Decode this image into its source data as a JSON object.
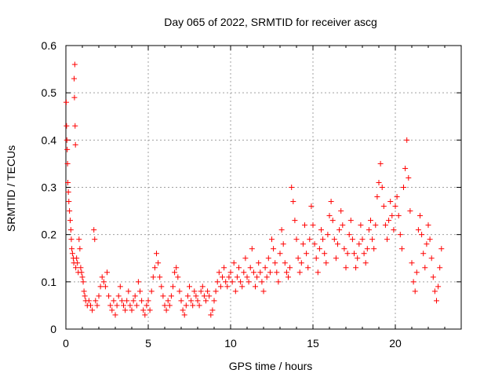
{
  "chart_data": {
    "type": "scatter",
    "title": "Day 065 of 2022, SRMTID for receiver ascg",
    "xlabel": "GPS time / hours",
    "ylabel": "SRMTID / TECUs",
    "xlim": [
      0,
      24
    ],
    "ylim": [
      0,
      0.6
    ],
    "xticks": [
      0,
      5,
      10,
      15,
      20
    ],
    "yticks": [
      0,
      0.1,
      0.2,
      0.3,
      0.4,
      0.5,
      0.6
    ],
    "xtick_labels": [
      "0",
      "5",
      "10",
      "15",
      "20"
    ],
    "ytick_labels": [
      "0",
      "0.1",
      "0.2",
      "0.3",
      "0.4",
      "0.5",
      "0.6"
    ],
    "grid": true,
    "marker": "+",
    "color": "#ff0000",
    "series": [
      {
        "name": "SRMTID",
        "points": [
          [
            0.02,
            0.48
          ],
          [
            0.04,
            0.43
          ],
          [
            0.06,
            0.4
          ],
          [
            0.08,
            0.38
          ],
          [
            0.1,
            0.35
          ],
          [
            0.12,
            0.31
          ],
          [
            0.15,
            0.29
          ],
          [
            0.18,
            0.27
          ],
          [
            0.22,
            0.25
          ],
          [
            0.26,
            0.23
          ],
          [
            0.3,
            0.21
          ],
          [
            0.33,
            0.19
          ],
          [
            0.36,
            0.17
          ],
          [
            0.4,
            0.16
          ],
          [
            0.45,
            0.15
          ],
          [
            0.48,
            0.14
          ],
          [
            0.5,
            0.53
          ],
          [
            0.52,
            0.49
          ],
          [
            0.54,
            0.56
          ],
          [
            0.56,
            0.43
          ],
          [
            0.58,
            0.39
          ],
          [
            0.6,
            0.13
          ],
          [
            0.65,
            0.15
          ],
          [
            0.7,
            0.14
          ],
          [
            0.75,
            0.12
          ],
          [
            0.8,
            0.19
          ],
          [
            0.85,
            0.17
          ],
          [
            0.9,
            0.13
          ],
          [
            0.95,
            0.12
          ],
          [
            1.0,
            0.11
          ],
          [
            1.05,
            0.1
          ],
          [
            1.1,
            0.08
          ],
          [
            1.15,
            0.07
          ],
          [
            1.2,
            0.06
          ],
          [
            1.3,
            0.05
          ],
          [
            1.4,
            0.06
          ],
          [
            1.5,
            0.05
          ],
          [
            1.6,
            0.04
          ],
          [
            1.7,
            0.21
          ],
          [
            1.75,
            0.19
          ],
          [
            1.8,
            0.06
          ],
          [
            1.9,
            0.05
          ],
          [
            2.0,
            0.07
          ],
          [
            2.1,
            0.09
          ],
          [
            2.2,
            0.11
          ],
          [
            2.3,
            0.1
          ],
          [
            2.4,
            0.09
          ],
          [
            2.5,
            0.12
          ],
          [
            2.6,
            0.07
          ],
          [
            2.7,
            0.05
          ],
          [
            2.8,
            0.04
          ],
          [
            2.9,
            0.06
          ],
          [
            3.0,
            0.03
          ],
          [
            3.1,
            0.05
          ],
          [
            3.2,
            0.07
          ],
          [
            3.3,
            0.09
          ],
          [
            3.4,
            0.06
          ],
          [
            3.5,
            0.05
          ],
          [
            3.6,
            0.04
          ],
          [
            3.7,
            0.06
          ],
          [
            3.8,
            0.08
          ],
          [
            3.9,
            0.05
          ],
          [
            4.0,
            0.04
          ],
          [
            4.1,
            0.06
          ],
          [
            4.2,
            0.07
          ],
          [
            4.3,
            0.05
          ],
          [
            4.4,
            0.1
          ],
          [
            4.5,
            0.08
          ],
          [
            4.6,
            0.06
          ],
          [
            4.7,
            0.04
          ],
          [
            4.8,
            0.03
          ],
          [
            4.9,
            0.05
          ],
          [
            5.0,
            0.06
          ],
          [
            5.1,
            0.04
          ],
          [
            5.2,
            0.08
          ],
          [
            5.3,
            0.11
          ],
          [
            5.4,
            0.13
          ],
          [
            5.5,
            0.16
          ],
          [
            5.6,
            0.14
          ],
          [
            5.7,
            0.11
          ],
          [
            5.8,
            0.09
          ],
          [
            5.9,
            0.07
          ],
          [
            6.0,
            0.05
          ],
          [
            6.1,
            0.04
          ],
          [
            6.2,
            0.06
          ],
          [
            6.3,
            0.05
          ],
          [
            6.4,
            0.07
          ],
          [
            6.5,
            0.09
          ],
          [
            6.6,
            0.12
          ],
          [
            6.7,
            0.13
          ],
          [
            6.8,
            0.11
          ],
          [
            6.9,
            0.08
          ],
          [
            7.0,
            0.06
          ],
          [
            7.1,
            0.04
          ],
          [
            7.2,
            0.03
          ],
          [
            7.3,
            0.05
          ],
          [
            7.4,
            0.07
          ],
          [
            7.5,
            0.09
          ],
          [
            7.6,
            0.06
          ],
          [
            7.7,
            0.05
          ],
          [
            7.8,
            0.08
          ],
          [
            7.9,
            0.07
          ],
          [
            8.0,
            0.06
          ],
          [
            8.1,
            0.05
          ],
          [
            8.2,
            0.08
          ],
          [
            8.3,
            0.09
          ],
          [
            8.4,
            0.07
          ],
          [
            8.5,
            0.06
          ],
          [
            8.6,
            0.08
          ],
          [
            8.7,
            0.07
          ],
          [
            8.8,
            0.03
          ],
          [
            8.9,
            0.04
          ],
          [
            9.0,
            0.06
          ],
          [
            9.1,
            0.08
          ],
          [
            9.2,
            0.1
          ],
          [
            9.3,
            0.12
          ],
          [
            9.4,
            0.09
          ],
          [
            9.5,
            0.11
          ],
          [
            9.6,
            0.13
          ],
          [
            9.7,
            0.1
          ],
          [
            9.8,
            0.09
          ],
          [
            9.9,
            0.11
          ],
          [
            10.0,
            0.12
          ],
          [
            10.1,
            0.1
          ],
          [
            10.2,
            0.14
          ],
          [
            10.3,
            0.08
          ],
          [
            10.4,
            0.11
          ],
          [
            10.5,
            0.13
          ],
          [
            10.6,
            0.1
          ],
          [
            10.7,
            0.09
          ],
          [
            10.8,
            0.12
          ],
          [
            10.9,
            0.15
          ],
          [
            11.0,
            0.11
          ],
          [
            11.1,
            0.1
          ],
          [
            11.2,
            0.13
          ],
          [
            11.3,
            0.17
          ],
          [
            11.4,
            0.12
          ],
          [
            11.5,
            0.09
          ],
          [
            11.6,
            0.11
          ],
          [
            11.7,
            0.14
          ],
          [
            11.8,
            0.12
          ],
          [
            11.9,
            0.1
          ],
          [
            12.0,
            0.08
          ],
          [
            12.1,
            0.13
          ],
          [
            12.2,
            0.11
          ],
          [
            12.3,
            0.15
          ],
          [
            12.4,
            0.12
          ],
          [
            12.5,
            0.19
          ],
          [
            12.6,
            0.17
          ],
          [
            12.7,
            0.14
          ],
          [
            12.8,
            0.12
          ],
          [
            12.9,
            0.1
          ],
          [
            13.0,
            0.16
          ],
          [
            13.1,
            0.21
          ],
          [
            13.2,
            0.18
          ],
          [
            13.3,
            0.14
          ],
          [
            13.4,
            0.12
          ],
          [
            13.5,
            0.11
          ],
          [
            13.6,
            0.13
          ],
          [
            13.7,
            0.3
          ],
          [
            13.8,
            0.27
          ],
          [
            13.9,
            0.23
          ],
          [
            14.0,
            0.19
          ],
          [
            14.1,
            0.15
          ],
          [
            14.2,
            0.12
          ],
          [
            14.3,
            0.14
          ],
          [
            14.4,
            0.18
          ],
          [
            14.5,
            0.22
          ],
          [
            14.6,
            0.16
          ],
          [
            14.7,
            0.13
          ],
          [
            14.8,
            0.19
          ],
          [
            14.9,
            0.26
          ],
          [
            15.0,
            0.22
          ],
          [
            15.1,
            0.18
          ],
          [
            15.2,
            0.15
          ],
          [
            15.3,
            0.12
          ],
          [
            15.4,
            0.17
          ],
          [
            15.5,
            0.21
          ],
          [
            15.6,
            0.19
          ],
          [
            15.7,
            0.16
          ],
          [
            15.8,
            0.14
          ],
          [
            15.9,
            0.2
          ],
          [
            16.0,
            0.24
          ],
          [
            16.1,
            0.27
          ],
          [
            16.2,
            0.23
          ],
          [
            16.3,
            0.19
          ],
          [
            16.4,
            0.15
          ],
          [
            16.5,
            0.18
          ],
          [
            16.6,
            0.21
          ],
          [
            16.7,
            0.25
          ],
          [
            16.8,
            0.22
          ],
          [
            16.9,
            0.17
          ],
          [
            17.0,
            0.13
          ],
          [
            17.1,
            0.16
          ],
          [
            17.2,
            0.2
          ],
          [
            17.3,
            0.23
          ],
          [
            17.4,
            0.19
          ],
          [
            17.5,
            0.16
          ],
          [
            17.6,
            0.13
          ],
          [
            17.7,
            0.15
          ],
          [
            17.8,
            0.18
          ],
          [
            17.9,
            0.22
          ],
          [
            18.0,
            0.19
          ],
          [
            18.1,
            0.16
          ],
          [
            18.2,
            0.14
          ],
          [
            18.3,
            0.17
          ],
          [
            18.4,
            0.21
          ],
          [
            18.5,
            0.23
          ],
          [
            18.6,
            0.19
          ],
          [
            18.7,
            0.17
          ],
          [
            18.8,
            0.22
          ],
          [
            18.9,
            0.28
          ],
          [
            19.0,
            0.31
          ],
          [
            19.1,
            0.35
          ],
          [
            19.2,
            0.3
          ],
          [
            19.3,
            0.26
          ],
          [
            19.4,
            0.22
          ],
          [
            19.5,
            0.19
          ],
          [
            19.6,
            0.23
          ],
          [
            19.7,
            0.27
          ],
          [
            19.8,
            0.24
          ],
          [
            19.9,
            0.21
          ],
          [
            20.0,
            0.26
          ],
          [
            20.1,
            0.28
          ],
          [
            20.2,
            0.24
          ],
          [
            20.3,
            0.2
          ],
          [
            20.4,
            0.17
          ],
          [
            20.5,
            0.3
          ],
          [
            20.6,
            0.34
          ],
          [
            20.7,
            0.4
          ],
          [
            20.8,
            0.32
          ],
          [
            20.9,
            0.25
          ],
          [
            21.0,
            0.14
          ],
          [
            21.1,
            0.1
          ],
          [
            21.2,
            0.08
          ],
          [
            21.3,
            0.12
          ],
          [
            21.4,
            0.21
          ],
          [
            21.5,
            0.24
          ],
          [
            21.6,
            0.2
          ],
          [
            21.7,
            0.16
          ],
          [
            21.8,
            0.13
          ],
          [
            21.9,
            0.18
          ],
          [
            22.0,
            0.22
          ],
          [
            22.1,
            0.19
          ],
          [
            22.2,
            0.15
          ],
          [
            22.3,
            0.11
          ],
          [
            22.4,
            0.08
          ],
          [
            22.5,
            0.06
          ],
          [
            22.6,
            0.09
          ],
          [
            22.7,
            0.13
          ],
          [
            22.8,
            0.17
          ]
        ]
      }
    ]
  }
}
